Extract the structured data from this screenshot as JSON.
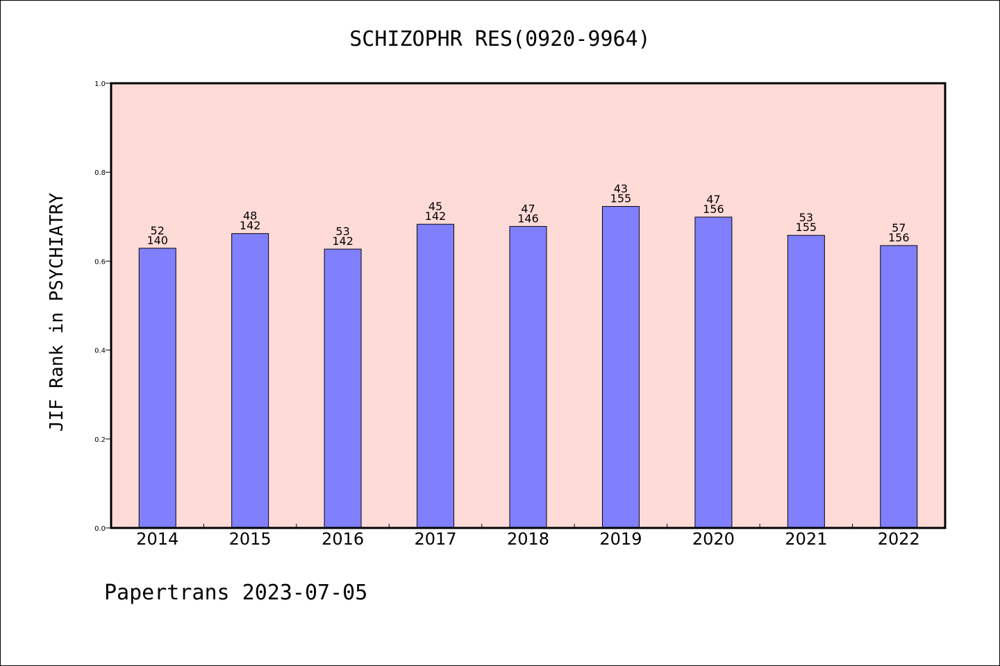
{
  "chart_data": {
    "type": "bar",
    "title": "SCHIZOPHR RES(0920-9964)",
    "xlabel": "",
    "ylabel": "JIF Rank in PSYCHIATRY",
    "categories": [
      "2014",
      "2015",
      "2016",
      "2017",
      "2018",
      "2019",
      "2020",
      "2021",
      "2022"
    ],
    "values": [
      0.629,
      0.662,
      0.627,
      0.683,
      0.678,
      0.723,
      0.699,
      0.658,
      0.635
    ],
    "labels_top": [
      "52",
      "48",
      "53",
      "45",
      "47",
      "43",
      "47",
      "53",
      "57"
    ],
    "labels_bottom": [
      "140",
      "142",
      "142",
      "142",
      "146",
      "155",
      "156",
      "155",
      "156"
    ],
    "ylim": [
      0.0,
      1.0
    ],
    "yticks": [
      "0.0",
      "0.2",
      "0.4",
      "0.6",
      "0.8",
      "1.0"
    ],
    "grid": false,
    "colors": {
      "plot_background": "#ffdbd8",
      "bar_fill": "#8080ff",
      "bar_stroke": "#000000"
    }
  },
  "footer": {
    "text": "Papertrans 2023-07-05"
  }
}
